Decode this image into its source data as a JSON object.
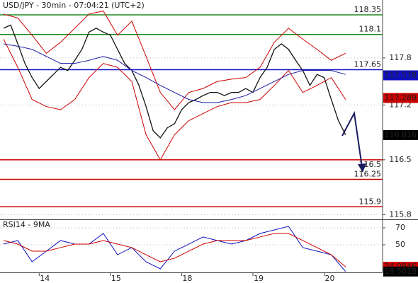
{
  "chart_data": [
    {
      "type": "line",
      "title": "USD/JPY - 30min - 07:04:21 (UTC+2)",
      "xlim": [
        0.45,
        5.82
      ],
      "ylim": [
        115.74,
        118.54
      ],
      "yticks": [
        117.8,
        117.2,
        116.5,
        115.8
      ],
      "grid": true,
      "x": [
        0.5,
        0.6,
        0.7,
        0.8,
        0.9,
        1.0,
        1.1,
        1.2,
        1.3,
        1.4,
        1.5,
        1.6,
        1.7,
        1.8,
        1.9,
        2.0,
        2.1,
        2.2,
        2.3,
        2.4,
        2.5,
        2.6,
        2.7,
        2.8,
        2.9,
        3.0,
        3.1,
        3.2,
        3.3,
        3.4,
        3.5,
        3.6,
        3.7,
        3.8,
        3.9,
        4.0,
        4.1,
        4.2,
        4.3,
        4.4,
        4.5,
        4.6,
        4.7,
        4.8,
        4.9,
        5.0,
        5.1,
        5.2,
        5.3
      ],
      "series": [
        {
          "color": "#111111",
          "values": [
            118.18,
            118.22,
            117.98,
            117.73,
            117.55,
            117.41,
            117.5,
            117.59,
            117.68,
            117.64,
            117.77,
            117.91,
            118.13,
            118.18,
            118.13,
            118.09,
            117.91,
            117.73,
            117.64,
            117.45,
            117.18,
            116.87,
            116.78,
            116.91,
            116.96,
            117.14,
            117.23,
            117.27,
            117.32,
            117.36,
            117.36,
            117.32,
            117.36,
            117.36,
            117.41,
            117.36,
            117.55,
            117.68,
            117.91,
            117.98,
            117.91,
            117.77,
            117.64,
            117.45,
            117.59,
            117.55,
            117.27,
            117.0,
            116.82
          ]
        },
        {
          "color": "#cc0000",
          "x": [
            0.5,
            0.7,
            0.9,
            1.1,
            1.3,
            1.5,
            1.7,
            1.9,
            2.1,
            2.3,
            2.5,
            2.7,
            2.9,
            3.1,
            3.3,
            3.5,
            3.7,
            3.9,
            4.1,
            4.3,
            4.5,
            4.7,
            4.9,
            5.1,
            5.3
          ],
          "values": [
            118.36,
            118.31,
            118.09,
            117.86,
            118.0,
            118.18,
            118.36,
            118.4,
            118.09,
            118.27,
            117.82,
            117.36,
            117.14,
            117.36,
            117.41,
            117.5,
            117.53,
            117.55,
            117.68,
            118.0,
            118.18,
            118.04,
            117.91,
            117.77,
            117.86
          ]
        },
        {
          "color": "#cc0000",
          "x": [
            0.5,
            0.7,
            0.9,
            1.1,
            1.3,
            1.5,
            1.7,
            1.9,
            2.1,
            2.3,
            2.5,
            2.7,
            2.9,
            3.1,
            3.3,
            3.5,
            3.7,
            3.9,
            4.1,
            4.3,
            4.5,
            4.7,
            4.9,
            5.1,
            5.3
          ],
          "values": [
            118.04,
            117.68,
            117.27,
            117.18,
            117.14,
            117.27,
            117.55,
            117.73,
            117.68,
            117.5,
            116.82,
            116.5,
            116.82,
            117.0,
            117.09,
            117.18,
            117.23,
            117.23,
            117.27,
            117.45,
            117.64,
            117.36,
            117.45,
            117.55,
            117.27
          ]
        },
        {
          "color": "#1a1aa0",
          "x": [
            0.5,
            0.7,
            0.9,
            1.1,
            1.3,
            1.5,
            1.7,
            1.9,
            2.1,
            2.3,
            2.5,
            2.7,
            2.9,
            3.1,
            3.3,
            3.5,
            3.7,
            3.9,
            4.1,
            4.3,
            4.5,
            4.7,
            4.9,
            5.1,
            5.3
          ],
          "values": [
            117.98,
            117.95,
            117.91,
            117.82,
            117.73,
            117.73,
            117.77,
            117.82,
            117.77,
            117.64,
            117.55,
            117.45,
            117.36,
            117.27,
            117.23,
            117.23,
            117.27,
            117.32,
            117.41,
            117.5,
            117.59,
            117.64,
            117.64,
            117.64,
            117.59
          ]
        }
      ],
      "levels": [
        {
          "value": 118.35,
          "color": "#1e8c1e"
        },
        {
          "value": 118.1,
          "color": "#1e8c1e"
        },
        {
          "value": 117.65,
          "color": "#1010c0"
        },
        {
          "value": 116.5,
          "color": "#cc0000"
        },
        {
          "value": 116.25,
          "color": "#cc0000"
        },
        {
          "value": 115.9,
          "color": "#cc0000"
        }
      ],
      "price_labels": [
        {
          "value": 117.578,
          "color": "#1010c0"
        },
        {
          "value": 117.289,
          "color": "#cc0000"
        },
        {
          "value": 116.816,
          "color": "#000000"
        }
      ]
    },
    {
      "type": "line",
      "title": "RSI14 - 9MA",
      "xlim": [
        0.45,
        5.82
      ],
      "ylim": [
        17.5,
        78.3
      ],
      "yticks": [
        70,
        50
      ],
      "grid": true,
      "xticks": [
        {
          "value": 1,
          "label": "14"
        },
        {
          "value": 2,
          "label": "15"
        },
        {
          "value": 3,
          "label": "18"
        },
        {
          "value": 4,
          "label": "19"
        },
        {
          "value": 5,
          "label": "20"
        }
      ],
      "x": [
        0.5,
        0.7,
        0.9,
        1.1,
        1.3,
        1.5,
        1.7,
        1.9,
        2.1,
        2.3,
        2.5,
        2.7,
        2.9,
        3.1,
        3.3,
        3.5,
        3.7,
        3.9,
        4.1,
        4.3,
        4.5,
        4.7,
        4.9,
        5.1,
        5.3
      ],
      "series": [
        {
          "color": "#1010c0",
          "values": [
            50.8,
            55,
            30,
            42.5,
            55,
            50.8,
            50.8,
            63.3,
            38.3,
            46.7,
            30,
            21.7,
            42.5,
            50.8,
            59.2,
            55,
            50.8,
            55,
            63.3,
            67.5,
            71.7,
            46.7,
            42.5,
            38.3,
            18.5
          ]
        },
        {
          "color": "#cc0000",
          "values": [
            55,
            50.8,
            42.5,
            42.5,
            46.7,
            50.8,
            50.8,
            55,
            50.8,
            46.7,
            38.3,
            30,
            34.2,
            42.5,
            50.8,
            55,
            55,
            55,
            59.2,
            63.3,
            63.3,
            55,
            46.7,
            38.3,
            24.1
          ]
        }
      ],
      "price_labels": [
        {
          "value": 24.0846,
          "color": "#cc0000"
        },
        {
          "value": 18.5018,
          "color": "#000000"
        }
      ]
    }
  ]
}
